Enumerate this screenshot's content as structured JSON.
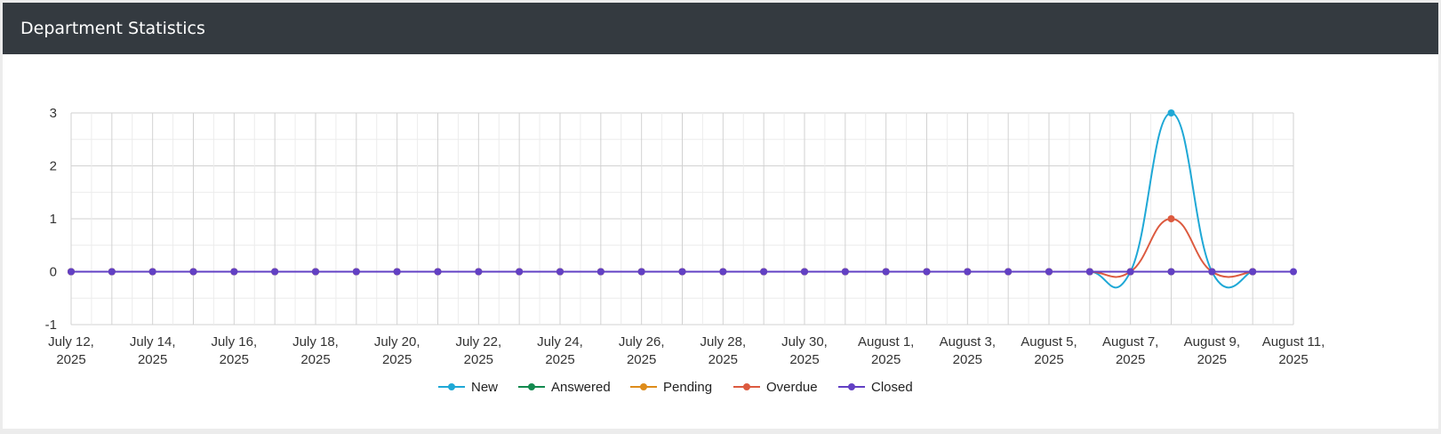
{
  "header": {
    "title": "Department Statistics"
  },
  "colors": {
    "header_bg": "#343a40",
    "New": "#1fa8d6",
    "Answered": "#138a4f",
    "Pending": "#de8c1a",
    "Overdue": "#dc5a3f",
    "Closed": "#6240c4"
  },
  "chart_data": {
    "type": "line",
    "title": "",
    "xlabel": "",
    "ylabel": "",
    "ylim": [
      -1,
      3
    ],
    "yticks": [
      -1,
      0,
      1,
      2,
      3
    ],
    "grid": true,
    "legend": "bottom",
    "x": [
      "2025-07-12",
      "2025-07-13",
      "2025-07-14",
      "2025-07-15",
      "2025-07-16",
      "2025-07-17",
      "2025-07-18",
      "2025-07-19",
      "2025-07-20",
      "2025-07-21",
      "2025-07-22",
      "2025-07-23",
      "2025-07-24",
      "2025-07-25",
      "2025-07-26",
      "2025-07-27",
      "2025-07-28",
      "2025-07-29",
      "2025-07-30",
      "2025-07-31",
      "2025-08-01",
      "2025-08-02",
      "2025-08-03",
      "2025-08-04",
      "2025-08-05",
      "2025-08-06",
      "2025-08-07",
      "2025-08-08",
      "2025-08-09",
      "2025-08-10",
      "2025-08-11"
    ],
    "xtick_labels": [
      [
        "July 12,",
        "2025"
      ],
      [
        "July 14,",
        "2025"
      ],
      [
        "July 16,",
        "2025"
      ],
      [
        "July 18,",
        "2025"
      ],
      [
        "July 20,",
        "2025"
      ],
      [
        "July 22,",
        "2025"
      ],
      [
        "July 24,",
        "2025"
      ],
      [
        "July 26,",
        "2025"
      ],
      [
        "July 28,",
        "2025"
      ],
      [
        "July 30,",
        "2025"
      ],
      [
        "August 1,",
        "2025"
      ],
      [
        "August 3,",
        "2025"
      ],
      [
        "August 5,",
        "2025"
      ],
      [
        "August 7,",
        "2025"
      ],
      [
        "August 9,",
        "2025"
      ],
      [
        "August 11,",
        "2025"
      ]
    ],
    "series": [
      {
        "name": "New",
        "values": [
          0,
          0,
          0,
          0,
          0,
          0,
          0,
          0,
          0,
          0,
          0,
          0,
          0,
          0,
          0,
          0,
          0,
          0,
          0,
          0,
          0,
          0,
          0,
          0,
          0,
          0,
          0,
          3,
          0,
          0,
          null
        ]
      },
      {
        "name": "Answered",
        "values": [
          0,
          0,
          0,
          0,
          0,
          0,
          0,
          0,
          0,
          0,
          0,
          0,
          0,
          0,
          0,
          0,
          0,
          0,
          0,
          0,
          0,
          0,
          0,
          0,
          0,
          0,
          0,
          0,
          0,
          0,
          null
        ]
      },
      {
        "name": "Pending",
        "values": [
          0,
          0,
          0,
          0,
          0,
          0,
          0,
          0,
          0,
          0,
          0,
          0,
          0,
          0,
          0,
          0,
          0,
          0,
          0,
          0,
          0,
          0,
          0,
          0,
          0,
          0,
          0,
          0,
          0,
          0,
          null
        ]
      },
      {
        "name": "Overdue",
        "values": [
          0,
          0,
          0,
          0,
          0,
          0,
          0,
          0,
          0,
          0,
          0,
          0,
          0,
          0,
          0,
          0,
          0,
          0,
          0,
          0,
          0,
          0,
          0,
          0,
          0,
          0,
          0,
          1,
          0,
          0,
          null
        ]
      },
      {
        "name": "Closed",
        "values": [
          0,
          0,
          0,
          0,
          0,
          0,
          0,
          0,
          0,
          0,
          0,
          0,
          0,
          0,
          0,
          0,
          0,
          0,
          0,
          0,
          0,
          0,
          0,
          0,
          0,
          0,
          0,
          0,
          0,
          0,
          0
        ]
      }
    ]
  }
}
